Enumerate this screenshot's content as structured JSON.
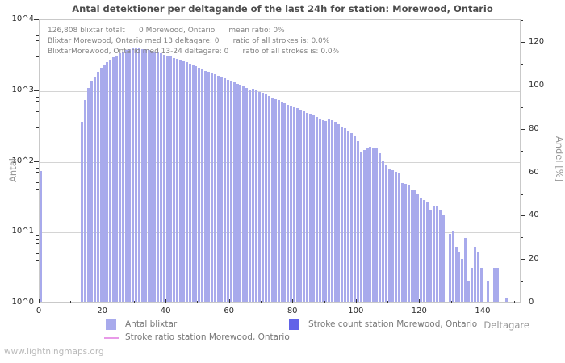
{
  "title": "Antal detektioner per deltagande of the last 24h for station: Morewood, Ontario",
  "watermark": "www.lightningmaps.org",
  "annotation": {
    "line1": "126,808 blixtar totalt      0 Morewood, Ontario      mean ratio: 0%",
    "line2": "Blixtar Morewood, Ontario med 13 deltagare: 0      ratio of all strokes is: 0.0%",
    "line3": "BlixtarMorewood, Ontario med 13-24 deltagare: 0      ratio of all strokes is: 0.0%"
  },
  "legend": {
    "item1": {
      "label": "Antal blixtar",
      "color": "#a8aaec",
      "type": "square"
    },
    "item2": {
      "label": "Stroke count station Morewood, Ontario",
      "color": "#6163e8",
      "type": "square"
    },
    "item3": {
      "label": "Stroke ratio station Morewood, Ontario",
      "color": "#e89ae8",
      "type": "line"
    }
  },
  "colors": {
    "bar_fill": "#a8aaec",
    "stroke_count_fill": "#6163e8",
    "ratio_line": "#e89ae8",
    "grid": "#d4d4d4",
    "border": "#c9c9c9"
  },
  "chart_data": {
    "type": "bar",
    "title": "Antal detektioner per deltagande of the last 24h for station: Morewood, Ontario",
    "xlabel": "Deltagare",
    "ylabel_left": "Antal",
    "ylabel_right": "Andel [%]",
    "y_scale": "log",
    "ylim_left": [
      1,
      10000
    ],
    "ylim_right": [
      0,
      130.5
    ],
    "xlim": [
      0,
      152
    ],
    "grid": "horizontal-decades",
    "legend_position": "bottom",
    "y_left_ticks": [
      "10^0",
      "10^1",
      "10^2",
      "10^3",
      "10^4"
    ],
    "y_right_ticks": [
      0,
      20,
      40,
      60,
      80,
      100,
      120
    ],
    "x_major_ticks": [
      0,
      20,
      40,
      60,
      80,
      100,
      120,
      140
    ],
    "x_minor_step": 10,
    "x_description": "Deltagare (number of participating stations), bar per integer x from 0 to 150",
    "total_strokes_label": "126,808 blixtar totalt",
    "station_strokes": 0,
    "mean_ratio_percent": 0,
    "series": [
      {
        "name": "Antal blixtar",
        "type": "bar",
        "color": "#a8aaec",
        "x_start": 0,
        "x_step": 1,
        "values": [
          70,
          0,
          0,
          0,
          0,
          0,
          0,
          0,
          0,
          0,
          0,
          0,
          0,
          350,
          700,
          1050,
          1280,
          1500,
          1750,
          2000,
          2230,
          2450,
          2600,
          2830,
          3020,
          3240,
          3400,
          3550,
          3680,
          3750,
          3800,
          3780,
          3720,
          3650,
          3580,
          3500,
          3400,
          3300,
          3200,
          3100,
          3000,
          2900,
          2800,
          2700,
          2600,
          2500,
          2400,
          2300,
          2200,
          2100,
          2000,
          1920,
          1840,
          1760,
          1690,
          1620,
          1550,
          1480,
          1420,
          1360,
          1300,
          1250,
          1200,
          1150,
          1100,
          1050,
          1000,
          1030,
          980,
          930,
          890,
          850,
          810,
          770,
          730,
          700,
          670,
          640,
          610,
          580,
          560,
          540,
          510,
          490,
          470,
          450,
          430,
          410,
          390,
          370,
          360,
          385,
          370,
          350,
          320,
          300,
          280,
          260,
          240,
          220,
          185,
          130,
          140,
          145,
          155,
          150,
          148,
          125,
          95,
          87,
          75,
          72,
          68,
          65,
          47,
          46,
          45,
          38,
          37,
          33,
          29,
          27,
          25,
          20,
          23,
          23,
          20,
          17,
          0,
          9,
          10,
          6,
          5,
          4,
          8,
          2,
          3,
          6,
          5,
          3,
          0,
          2,
          0,
          3,
          3,
          0,
          0,
          1.1,
          0,
          0,
          0
        ]
      },
      {
        "name": "Stroke count station Morewood, Ontario",
        "type": "bar",
        "color": "#6163e8",
        "constant_value": 0
      },
      {
        "name": "Stroke ratio station Morewood, Ontario",
        "type": "line",
        "color": "#e89ae8",
        "constant_value": 0
      }
    ]
  }
}
